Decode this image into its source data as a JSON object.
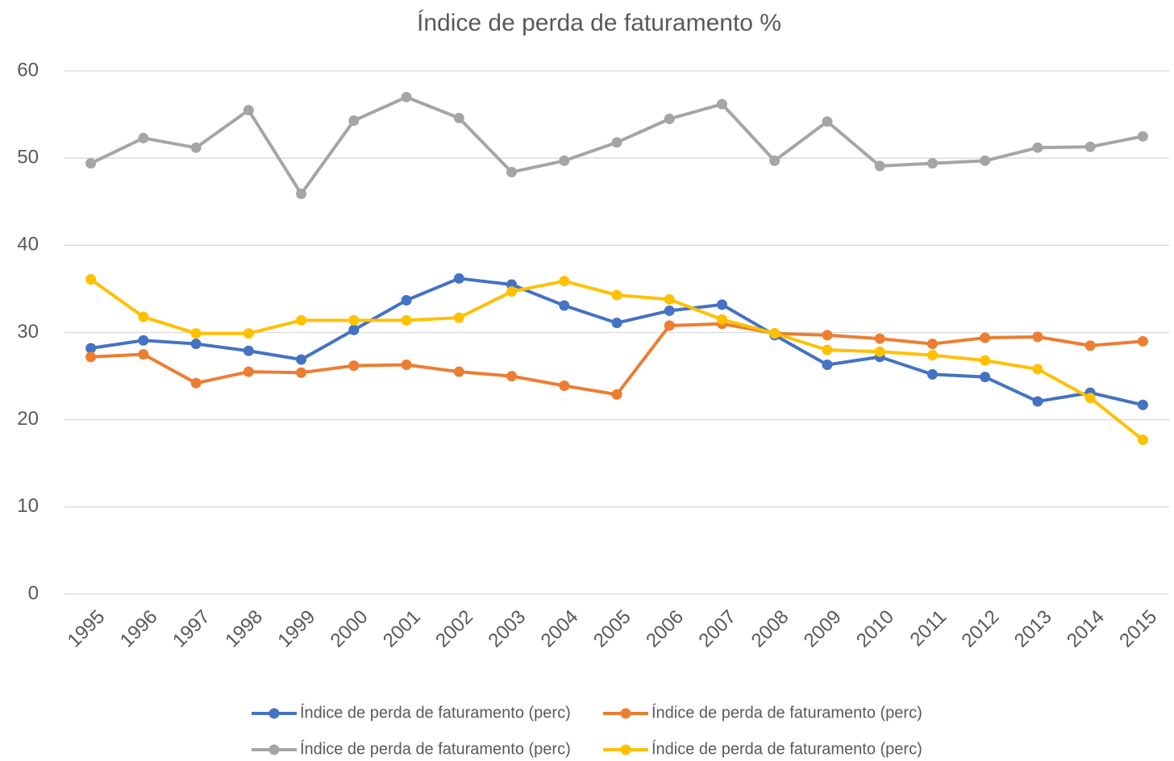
{
  "chart_data": {
    "type": "line",
    "title": "Índice de perda de faturamento %",
    "categories": [
      "1995",
      "1996",
      "1997",
      "1998",
      "1999",
      "2000",
      "2001",
      "2002",
      "2003",
      "2004",
      "2005",
      "2006",
      "2007",
      "2008",
      "2009",
      "2010",
      "2011",
      "2012",
      "2013",
      "2014",
      "2015"
    ],
    "series": [
      {
        "name": "Índice de perda de faturamento (perc)",
        "color": "#4472c4",
        "values": [
          28.2,
          29.1,
          28.7,
          27.9,
          26.9,
          30.3,
          33.7,
          36.2,
          35.5,
          33.1,
          31.1,
          32.5,
          33.2,
          29.7,
          26.3,
          27.2,
          25.2,
          24.9,
          22.1,
          23.1,
          21.7
        ]
      },
      {
        "name": "Índice de perda de faturamento (perc)",
        "color": "#ed7d31",
        "values": [
          27.2,
          27.5,
          24.2,
          25.5,
          25.4,
          26.2,
          26.3,
          25.5,
          25.0,
          23.9,
          22.9,
          30.8,
          31.0,
          29.9,
          29.7,
          29.3,
          28.7,
          29.4,
          29.5,
          28.5,
          29.0
        ]
      },
      {
        "name": "Índice de perda de faturamento (perc)",
        "color": "#a5a5a5",
        "values": [
          49.4,
          52.3,
          51.2,
          55.5,
          45.9,
          54.3,
          57.0,
          54.6,
          48.4,
          49.7,
          51.8,
          54.5,
          56.2,
          49.7,
          54.2,
          49.1,
          49.4,
          49.7,
          51.2,
          51.3,
          52.5
        ]
      },
      {
        "name": "Índice de perda de faturamento (perc)",
        "color": "#ffc000",
        "values": [
          36.1,
          31.8,
          29.9,
          29.9,
          31.4,
          31.4,
          31.4,
          31.7,
          34.7,
          35.9,
          34.3,
          33.8,
          31.5,
          29.9,
          28.0,
          27.8,
          27.4,
          26.8,
          25.8,
          22.5,
          17.7
        ]
      }
    ],
    "ylim": [
      0,
      60
    ],
    "yticks": [
      0,
      10,
      20,
      30,
      40,
      50,
      60
    ],
    "grid": true
  }
}
